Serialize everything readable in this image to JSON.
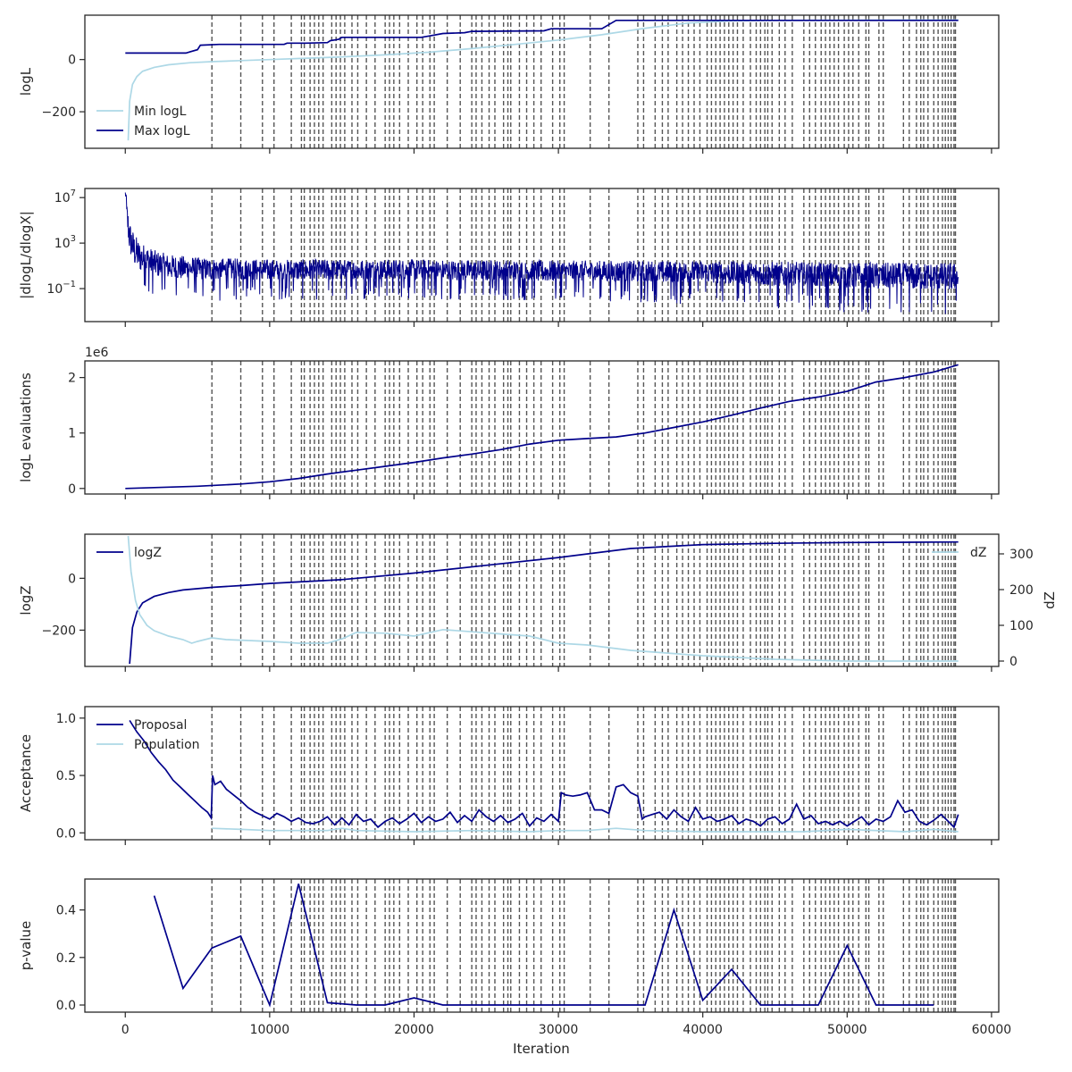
{
  "figure": {
    "xlabel": "Iteration",
    "x_ticks": [
      0,
      10000,
      20000,
      30000,
      40000,
      50000,
      60000
    ],
    "xlim": [
      -2800,
      60500
    ],
    "colors": {
      "dark": "#00008b",
      "light": "#add8e6",
      "vline": "#555555",
      "axes": "#262626"
    }
  },
  "chart_data": [
    {
      "id": "logL",
      "type": "line",
      "ylabel": "logL",
      "ylim": [
        -340,
        170
      ],
      "y_ticks": [
        {
          "v": 0,
          "t": "0"
        },
        {
          "v": -200,
          "t": "−200"
        }
      ],
      "legend": {
        "loc": "lower-left"
      },
      "series": [
        {
          "name": "Min logL",
          "color": "light",
          "x": [
            200,
            300,
            500,
            800,
            1200,
            2000,
            3000,
            4500,
            6000,
            8000,
            10000,
            12000,
            15000,
            18000,
            21000,
            24000,
            27000,
            30000,
            33000,
            36000,
            39000,
            42000,
            45000,
            50000,
            55000,
            57700
          ],
          "y": [
            -310,
            -160,
            -95,
            -65,
            -45,
            -30,
            -20,
            -12,
            -8,
            -4,
            0,
            4,
            10,
            18,
            28,
            42,
            58,
            75,
            95,
            120,
            140,
            148,
            150,
            151,
            152,
            152
          ]
        },
        {
          "name": "Max logL",
          "color": "dark",
          "x": [
            0,
            4200,
            4500,
            5000,
            5200,
            6500,
            11000,
            11200,
            12500,
            14000,
            14200,
            14800,
            15000,
            20500,
            21000,
            22000,
            23500,
            24000,
            29000,
            29500,
            33000,
            34000,
            57700
          ],
          "y": [
            25,
            25,
            30,
            38,
            55,
            58,
            58,
            63,
            63,
            65,
            72,
            78,
            85,
            85,
            90,
            100,
            103,
            108,
            110,
            118,
            118,
            150,
            150
          ]
        }
      ]
    },
    {
      "id": "dlogL",
      "type": "line",
      "ylabel": "|dlogL/dlogX|",
      "yscale": "log",
      "ylim": [
        -3.9,
        7.8
      ],
      "y_ticks": [
        {
          "v": 7,
          "t": "10",
          "exp": "7"
        },
        {
          "v": 3,
          "t": "10",
          "exp": "3"
        },
        {
          "v": -1,
          "t": "10",
          "exp": "−1"
        }
      ],
      "series": [
        {
          "name": "",
          "color": "dark",
          "noise_band": true,
          "x": [
            0,
            100,
            300,
            600,
            1000,
            2000,
            3000,
            5000,
            10000,
            20000,
            30000,
            40000,
            50000,
            57700
          ],
          "y_mid": [
            7.6,
            5.5,
            3.5,
            2.4,
            1.8,
            1.2,
            0.9,
            0.7,
            0.6,
            0.6,
            0.5,
            0.4,
            0.1,
            0.0
          ],
          "y_amp": [
            0,
            1.6,
            2.0,
            2.0,
            1.8,
            1.6,
            1.5,
            1.4,
            1.3,
            1.3,
            1.3,
            1.4,
            1.6,
            1.7
          ]
        }
      ]
    },
    {
      "id": "evals",
      "type": "line",
      "ylabel": "logL evaluations",
      "offset_text": "1e6",
      "ylim": [
        -0.1,
        2.3
      ],
      "y_ticks": [
        {
          "v": 0,
          "t": "0"
        },
        {
          "v": 1,
          "t": "1"
        },
        {
          "v": 2,
          "t": "2"
        }
      ],
      "series": [
        {
          "name": "",
          "color": "dark",
          "x": [
            0,
            5000,
            8000,
            10000,
            12000,
            14000,
            16000,
            18000,
            20000,
            22000,
            24000,
            26000,
            28000,
            30000,
            32000,
            34000,
            36000,
            38000,
            40000,
            42000,
            44000,
            46000,
            48000,
            50000,
            52000,
            54000,
            56000,
            57700
          ],
          "y": [
            0,
            0.04,
            0.08,
            0.12,
            0.18,
            0.26,
            0.33,
            0.4,
            0.47,
            0.55,
            0.62,
            0.7,
            0.8,
            0.87,
            0.9,
            0.93,
            1.0,
            1.1,
            1.2,
            1.32,
            1.45,
            1.57,
            1.65,
            1.75,
            1.92,
            2.0,
            2.1,
            2.23
          ]
        }
      ]
    },
    {
      "id": "logZ",
      "type": "line",
      "ylabel": "logZ",
      "ylim": [
        -340,
        170
      ],
      "y_ticks": [
        {
          "v": 0,
          "t": "0"
        },
        {
          "v": -200,
          "t": "−200"
        }
      ],
      "legend": {
        "loc": "top-left"
      },
      "series": [
        {
          "name": "logZ",
          "color": "dark",
          "x": [
            300,
            500,
            800,
            1200,
            2000,
            3000,
            4000,
            6000,
            8000,
            10000,
            15000,
            20000,
            25000,
            30000,
            35000,
            40000,
            45000,
            50000,
            57700
          ],
          "y": [
            -330,
            -190,
            -130,
            -95,
            -70,
            -55,
            -45,
            -35,
            -28,
            -20,
            -5,
            20,
            50,
            80,
            115,
            130,
            135,
            138,
            140
          ]
        },
        {
          "name": "dZ",
          "color": "light",
          "axis": "right",
          "x": [
            200,
            400,
            700,
            1000,
            1500,
            2000,
            3000,
            4000,
            4300,
            4600,
            5000,
            6000,
            7000,
            10000,
            12000,
            14000,
            15000,
            16000,
            18000,
            20000,
            22000,
            24000,
            26000,
            28000,
            30000,
            32000,
            35000,
            40000,
            45000,
            50000,
            57700
          ],
          "y": [
            350,
            250,
            170,
            130,
            100,
            85,
            70,
            60,
            55,
            50,
            55,
            65,
            60,
            55,
            50,
            50,
            62,
            80,
            78,
            70,
            88,
            82,
            76,
            70,
            50,
            45,
            30,
            15,
            5,
            0,
            0
          ]
        }
      ],
      "right_axis": {
        "ylabel": "dZ",
        "ylim": [
          -15,
          355
        ],
        "y_ticks": [
          {
            "v": 0,
            "t": "0"
          },
          {
            "v": 100,
            "t": "100"
          },
          {
            "v": 200,
            "t": "200"
          },
          {
            "v": 300,
            "t": "300"
          }
        ],
        "legend": {
          "loc": "top-right"
        }
      }
    },
    {
      "id": "acceptance",
      "type": "line",
      "ylabel": "Acceptance",
      "ylim": [
        -0.06,
        1.1
      ],
      "y_ticks": [
        {
          "v": 0,
          "t": "0.0"
        },
        {
          "v": 0.5,
          "t": "0.5"
        },
        {
          "v": 1,
          "t": "1.0"
        }
      ],
      "legend": {
        "loc": "top-left"
      },
      "series": [
        {
          "name": "Proposal",
          "color": "dark",
          "x": [
            300,
            800,
            1300,
            1800,
            2300,
            2800,
            3300,
            3800,
            4300,
            4800,
            5300,
            5700,
            5950,
            6050,
            6200,
            6600,
            7000,
            7500,
            8000,
            8500,
            9000,
            9500,
            10000,
            10500,
            11000,
            11500,
            12000,
            12500,
            13000,
            13500,
            14000,
            14500,
            15000,
            15500,
            16000,
            16500,
            17000,
            17500,
            18000,
            18500,
            19000,
            19500,
            20000,
            20500,
            21000,
            21500,
            22000,
            22500,
            23000,
            23500,
            24000,
            24500,
            25000,
            25500,
            26000,
            26500,
            27000,
            27500,
            28000,
            28500,
            29000,
            29500,
            30000,
            30200,
            30500,
            31000,
            31500,
            32000,
            32500,
            33000,
            33500,
            34000,
            34500,
            35000,
            35500,
            35800,
            36000,
            36500,
            37000,
            37500,
            38000,
            38500,
            39000,
            39500,
            40000,
            40500,
            41000,
            41500,
            42000,
            42500,
            43000,
            43500,
            44000,
            44500,
            45000,
            45500,
            46000,
            46500,
            47000,
            47500,
            48000,
            48500,
            49000,
            49500,
            50000,
            50500,
            51000,
            51500,
            52000,
            52500,
            53000,
            53500,
            54000,
            54500,
            55000,
            55500,
            56000,
            56500,
            57000,
            57400,
            57700
          ],
          "y": [
            0.98,
            0.88,
            0.8,
            0.7,
            0.62,
            0.55,
            0.46,
            0.4,
            0.34,
            0.28,
            0.22,
            0.18,
            0.13,
            0.5,
            0.42,
            0.45,
            0.38,
            0.33,
            0.28,
            0.22,
            0.18,
            0.15,
            0.12,
            0.17,
            0.14,
            0.1,
            0.13,
            0.09,
            0.08,
            0.1,
            0.14,
            0.07,
            0.13,
            0.07,
            0.16,
            0.1,
            0.12,
            0.05,
            0.1,
            0.13,
            0.08,
            0.12,
            0.17,
            0.09,
            0.14,
            0.1,
            0.12,
            0.18,
            0.09,
            0.15,
            0.1,
            0.2,
            0.14,
            0.1,
            0.15,
            0.09,
            0.12,
            0.17,
            0.06,
            0.13,
            0.1,
            0.16,
            0.1,
            0.35,
            0.33,
            0.32,
            0.33,
            0.35,
            0.2,
            0.2,
            0.17,
            0.4,
            0.42,
            0.35,
            0.32,
            0.12,
            0.14,
            0.16,
            0.18,
            0.12,
            0.2,
            0.14,
            0.1,
            0.22,
            0.12,
            0.14,
            0.1,
            0.12,
            0.15,
            0.08,
            0.12,
            0.1,
            0.06,
            0.12,
            0.14,
            0.08,
            0.12,
            0.25,
            0.12,
            0.15,
            0.08,
            0.1,
            0.07,
            0.1,
            0.06,
            0.1,
            0.14,
            0.07,
            0.12,
            0.1,
            0.14,
            0.28,
            0.18,
            0.2,
            0.1,
            0.07,
            0.11,
            0.16,
            0.1,
            0.05,
            0.16
          ]
        },
        {
          "name": "Population",
          "color": "light",
          "x": [
            6000,
            8000,
            10000,
            12000,
            14000,
            15000,
            16000,
            20000,
            24000,
            28000,
            30000,
            32000,
            34000,
            36000,
            40000,
            44000,
            47000,
            50000,
            54000,
            56000,
            57700
          ],
          "y": [
            0.04,
            0.03,
            0.02,
            0.02,
            0.02,
            0.04,
            0.02,
            0.01,
            0.02,
            0.01,
            0.02,
            0.02,
            0.04,
            0.02,
            0.01,
            0.01,
            0.01,
            0.03,
            0.01,
            0.03,
            0.01
          ]
        }
      ]
    },
    {
      "id": "pvalue",
      "type": "line",
      "ylabel": "p-value",
      "ylim": [
        -0.03,
        0.53
      ],
      "y_ticks": [
        {
          "v": 0,
          "t": "0.0"
        },
        {
          "v": 0.2,
          "t": "0.2"
        },
        {
          "v": 0.4,
          "t": "0.4"
        }
      ],
      "series": [
        {
          "name": "",
          "color": "dark",
          "x": [
            2000,
            4000,
            6000,
            8000,
            10000,
            12000,
            14000,
            16000,
            18000,
            20000,
            22000,
            24000,
            26000,
            28000,
            30000,
            32000,
            34000,
            36000,
            38000,
            40000,
            42000,
            44000,
            46000,
            48000,
            50000,
            52000,
            54000,
            56000
          ],
          "y": [
            0.46,
            0.07,
            0.24,
            0.29,
            0.0,
            0.51,
            0.01,
            0.0,
            0.0,
            0.03,
            0.0,
            0.0,
            0.0,
            0.0,
            0.0,
            0.0,
            0.0,
            0.0,
            0.4,
            0.02,
            0.15,
            0.0,
            0.0,
            0.0,
            0.25,
            0.0,
            0.0,
            0.0
          ]
        }
      ]
    }
  ],
  "vlines": [
    6000,
    8000,
    9500,
    10300,
    11500,
    12200,
    12400,
    12800,
    13100,
    13400,
    13700,
    14300,
    14600,
    14900,
    15200,
    15700,
    16100,
    16700,
    17300,
    18000,
    18300,
    18600,
    19000,
    19600,
    20200,
    20600,
    21100,
    21400,
    22300,
    23200,
    24000,
    24300,
    24700,
    25200,
    25600,
    26200,
    26500,
    26700,
    27300,
    27800,
    28300,
    28800,
    29600,
    30100,
    30400,
    32200,
    33500,
    35500,
    35900,
    36700,
    37200,
    37600,
    38200,
    38600,
    39000,
    39400,
    39800,
    40300,
    40600,
    40900,
    41200,
    41500,
    41800,
    42100,
    42400,
    42800,
    43300,
    43700,
    44000,
    44300,
    44500,
    44800,
    45300,
    45700,
    46200,
    47000,
    47400,
    47800,
    48200,
    48500,
    48800,
    49100,
    49400,
    49800,
    50100,
    50400,
    50800,
    51300,
    51500,
    52200,
    52500,
    53900,
    54300,
    54800,
    55100,
    55300,
    55600,
    56000,
    56300,
    56600,
    56800,
    57000,
    57200,
    57400,
    57500
  ]
}
